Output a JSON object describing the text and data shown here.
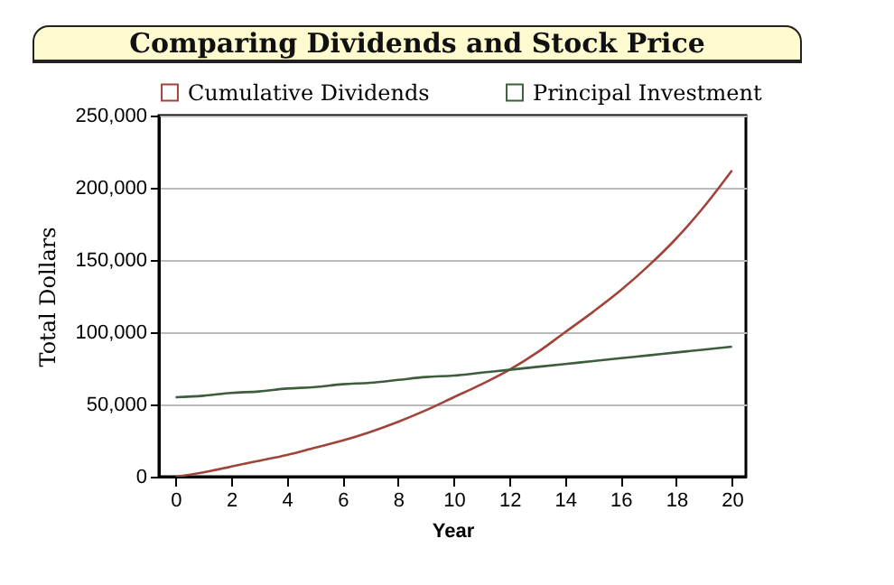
{
  "chart_data": {
    "type": "line",
    "title": "Comparing Dividends and Stock Price",
    "xlabel": "Year",
    "ylabel": "Total Dollars",
    "x": [
      0,
      1,
      2,
      3,
      4,
      5,
      6,
      7,
      8,
      9,
      10,
      11,
      12,
      13,
      14,
      15,
      16,
      17,
      18,
      19,
      20
    ],
    "series": [
      {
        "name": "Cumulative Dividends",
        "color": "#a0443a",
        "values": [
          0,
          3000,
          7000,
          11000,
          15000,
          20000,
          25000,
          31000,
          38000,
          46000,
          55000,
          64000,
          74000,
          86000,
          100000,
          114000,
          129000,
          146000,
          165000,
          187000,
          212000
        ]
      },
      {
        "name": "Principal Investment",
        "color": "#3d5e3d",
        "values": [
          55000,
          56000,
          58000,
          59000,
          61000,
          62000,
          64000,
          65000,
          67000,
          69000,
          70000,
          72000,
          74000,
          76000,
          78000,
          80000,
          82000,
          84000,
          86000,
          88000,
          90000
        ]
      }
    ],
    "xlim": [
      -0.6,
      20.5
    ],
    "xticks": [
      0,
      2,
      4,
      6,
      8,
      10,
      12,
      14,
      16,
      18,
      20
    ],
    "ylim": [
      0,
      250000
    ],
    "yticks": [
      0,
      {
        "value": 50000,
        "label": "50,000"
      },
      {
        "value": 100000,
        "label": "100,000"
      },
      {
        "value": 150000,
        "label": "150,000"
      },
      {
        "value": 200000,
        "label": "200,000"
      },
      {
        "value": 250000,
        "label": "250,000"
      }
    ],
    "grid": "y",
    "legend": "top",
    "marker": "none",
    "line_style": "solid"
  }
}
